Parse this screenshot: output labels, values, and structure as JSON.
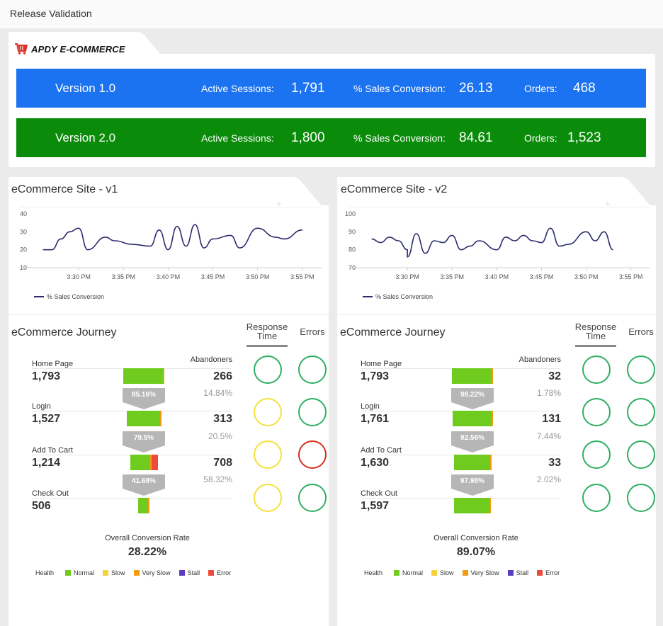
{
  "app": {
    "title": "Release Validation"
  },
  "brand": {
    "name": "APDY E-COMMERCE",
    "icon": "cart-icon"
  },
  "versions": [
    {
      "name": "Version 1.0",
      "sessions_label": "Active Sessions:",
      "sessions": "1,791",
      "conversion_label": "% Sales Conversion:",
      "conversion": "26.13",
      "orders_label": "Orders:",
      "orders": "468",
      "color": "#1c73f2"
    },
    {
      "name": "Version 2.0",
      "sessions_label": "Active Sessions:",
      "sessions": "1,800",
      "conversion_label": "% Sales Conversion:",
      "conversion": "84.61",
      "orders_label": "Orders:",
      "orders": "1,523",
      "color": "#0a8c0a"
    }
  ],
  "sites": [
    {
      "title": "eCommerce Site - v1",
      "journey_title": "eCommerce Journey",
      "response_label": "Response Time",
      "errors_label": "Errors",
      "abandoners_label": "Abandoners",
      "steps": [
        {
          "label": "Home Page",
          "value": "1,793",
          "abandoners": "266",
          "bar_fraction": 1.0,
          "err_fraction": 0.0,
          "response": "green",
          "errors": "green"
        },
        {
          "label": "Login",
          "value": "1,527",
          "abandoners": "313",
          "bar_fraction": 0.85,
          "err_fraction": 0.0,
          "response": "yellow",
          "errors": "green",
          "pass_rate": "85.16%",
          "aband_rate": "14.84%"
        },
        {
          "label": "Add To Cart",
          "value": "1,214",
          "abandoners": "708",
          "bar_fraction": 0.68,
          "err_fraction": 0.22,
          "response": "yellow",
          "errors": "red",
          "pass_rate": "79.5%",
          "aband_rate": "20.5%"
        },
        {
          "label": "Check Out",
          "value": "506",
          "abandoners": "",
          "bar_fraction": 0.28,
          "err_fraction": 0.0,
          "response": "yellow",
          "errors": "green",
          "pass_rate": "41.68%",
          "aband_rate": "58.32%"
        }
      ],
      "overall_label": "Overall Conversion Rate",
      "overall_value": "28.22%"
    },
    {
      "title": "eCommerce Site - v2",
      "journey_title": "eCommerce Journey",
      "response_label": "Response Time",
      "errors_label": "Errors",
      "abandoners_label": "Abandoners",
      "steps": [
        {
          "label": "Home Page",
          "value": "1,793",
          "abandoners": "32",
          "bar_fraction": 1.0,
          "err_fraction": 0.0,
          "response": "green",
          "errors": "green"
        },
        {
          "label": "Login",
          "value": "1,761",
          "abandoners": "131",
          "bar_fraction": 0.98,
          "err_fraction": 0.0,
          "response": "green",
          "errors": "green",
          "pass_rate": "98.22%",
          "aband_rate": "1.78%"
        },
        {
          "label": "Add To Cart",
          "value": "1,630",
          "abandoners": "33",
          "bar_fraction": 0.92,
          "err_fraction": 0.0,
          "response": "green",
          "errors": "green",
          "pass_rate": "92.56%",
          "aband_rate": "7.44%"
        },
        {
          "label": "Check Out",
          "value": "1,597",
          "abandoners": "",
          "bar_fraction": 0.9,
          "err_fraction": 0.0,
          "response": "green",
          "errors": "green",
          "pass_rate": "97.98%",
          "aband_rate": "2.02%"
        }
      ],
      "overall_label": "Overall Conversion Rate",
      "overall_value": "89.07%"
    }
  ],
  "health_legend": {
    "label": "Health",
    "items": [
      {
        "name": "Normal",
        "color": "#6fcc1f"
      },
      {
        "name": "Slow",
        "color": "#f7d23c"
      },
      {
        "name": "Very Slow",
        "color": "#f39c12"
      },
      {
        "name": "Stall",
        "color": "#5b3dbf"
      },
      {
        "name": "Error",
        "color": "#ee4b3c"
      }
    ]
  },
  "chart_data": [
    {
      "type": "line",
      "series": [
        {
          "name": "% Sales Conversion",
          "values": [
            20,
            20,
            26,
            30,
            32,
            20,
            27,
            25,
            23,
            22,
            31,
            20,
            33,
            22,
            34,
            21,
            26,
            28,
            21,
            32,
            27,
            26,
            31
          ]
        }
      ],
      "x": [
        "3:26 PM",
        "3:27 PM",
        "3:28 PM",
        "3:29 PM",
        "3:30 PM",
        "3:31 PM",
        "3:33 PM",
        "3:34 PM",
        "3:36 PM",
        "3:38 PM",
        "3:39 PM",
        "3:40 PM",
        "3:41 PM",
        "3:42 PM",
        "3:43 PM",
        "3:44 PM",
        "3:45 PM",
        "3:47 PM",
        "3:48 PM",
        "3:50 PM",
        "3:52 PM",
        "3:53 PM",
        "3:55 PM"
      ],
      "x_ticks": [
        "3:30 PM",
        "3:35 PM",
        "3:40 PM",
        "3:45 PM",
        "3:50 PM",
        "3:55 PM"
      ],
      "y_ticks": [
        "40",
        "30",
        "20",
        "10"
      ],
      "ylim": [
        10,
        40
      ],
      "color": "#2b2b6e"
    },
    {
      "type": "line",
      "series": [
        {
          "name": "% Sales Conversion",
          "values": [
            86,
            84,
            87,
            85,
            80,
            76,
            89,
            78,
            85,
            84,
            88,
            80,
            82,
            85,
            80,
            87,
            85,
            88,
            85,
            84,
            92,
            82,
            83,
            90,
            85,
            90,
            80
          ]
        }
      ],
      "x": [
        "3:26 PM",
        "3:27 PM",
        "3:28 PM",
        "3:29 PM",
        "3:30 PM",
        "3:30 PM",
        "3:31 PM",
        "3:32 PM",
        "3:33 PM",
        "3:34 PM",
        "3:35 PM",
        "3:36 PM",
        "3:37 PM",
        "3:38 PM",
        "3:40 PM",
        "3:41 PM",
        "3:42 PM",
        "3:43 PM",
        "3:44 PM",
        "3:45 PM",
        "3:46 PM",
        "3:47 PM",
        "3:48 PM",
        "3:50 PM",
        "3:51 PM",
        "3:52 PM",
        "3:53 PM"
      ],
      "x_ticks": [
        "3:30 PM",
        "3:35 PM",
        "3:40 PM",
        "3:45 PM",
        "3:50 PM",
        "3:55 PM"
      ],
      "y_ticks": [
        "100",
        "90",
        "80",
        "70"
      ],
      "ylim": [
        70,
        100
      ],
      "color": "#2b2b6e"
    }
  ]
}
